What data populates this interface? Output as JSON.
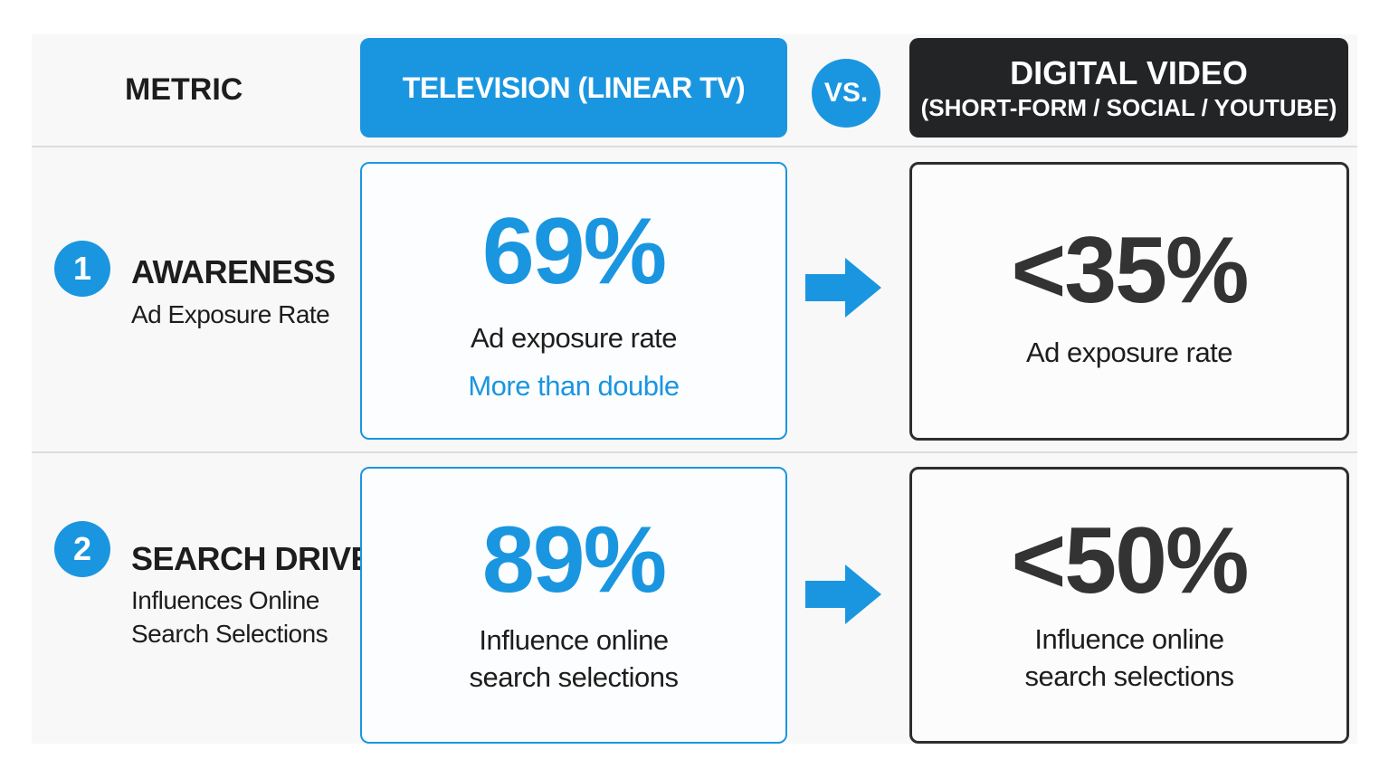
{
  "header": {
    "metric": "METRIC",
    "tv": "TELEVISION (LINEAR TV)",
    "vs": "VS.",
    "digital_title": "DIGITAL VIDEO",
    "digital_subtitle": "(SHORT-FORM / SOCIAL / YOUTUBE)"
  },
  "rows": [
    {
      "number": "1",
      "title": "AWARENESS",
      "subtitle": [
        "Ad Exposure Rate"
      ],
      "tv": {
        "value": "69%",
        "label": [
          "Ad exposure rate"
        ],
        "note": "More than double"
      },
      "digital": {
        "value": "<35%",
        "label": [
          "Ad exposure rate"
        ]
      }
    },
    {
      "number": "2",
      "title": "SEARCH DRIVE",
      "subtitle": [
        "Influences Online",
        "Search Selections"
      ],
      "tv": {
        "value": "89%",
        "label": [
          "Influence online",
          "search selections"
        ]
      },
      "digital": {
        "value": "<50%",
        "label": [
          "Influence online",
          "search selections"
        ]
      }
    }
  ]
}
